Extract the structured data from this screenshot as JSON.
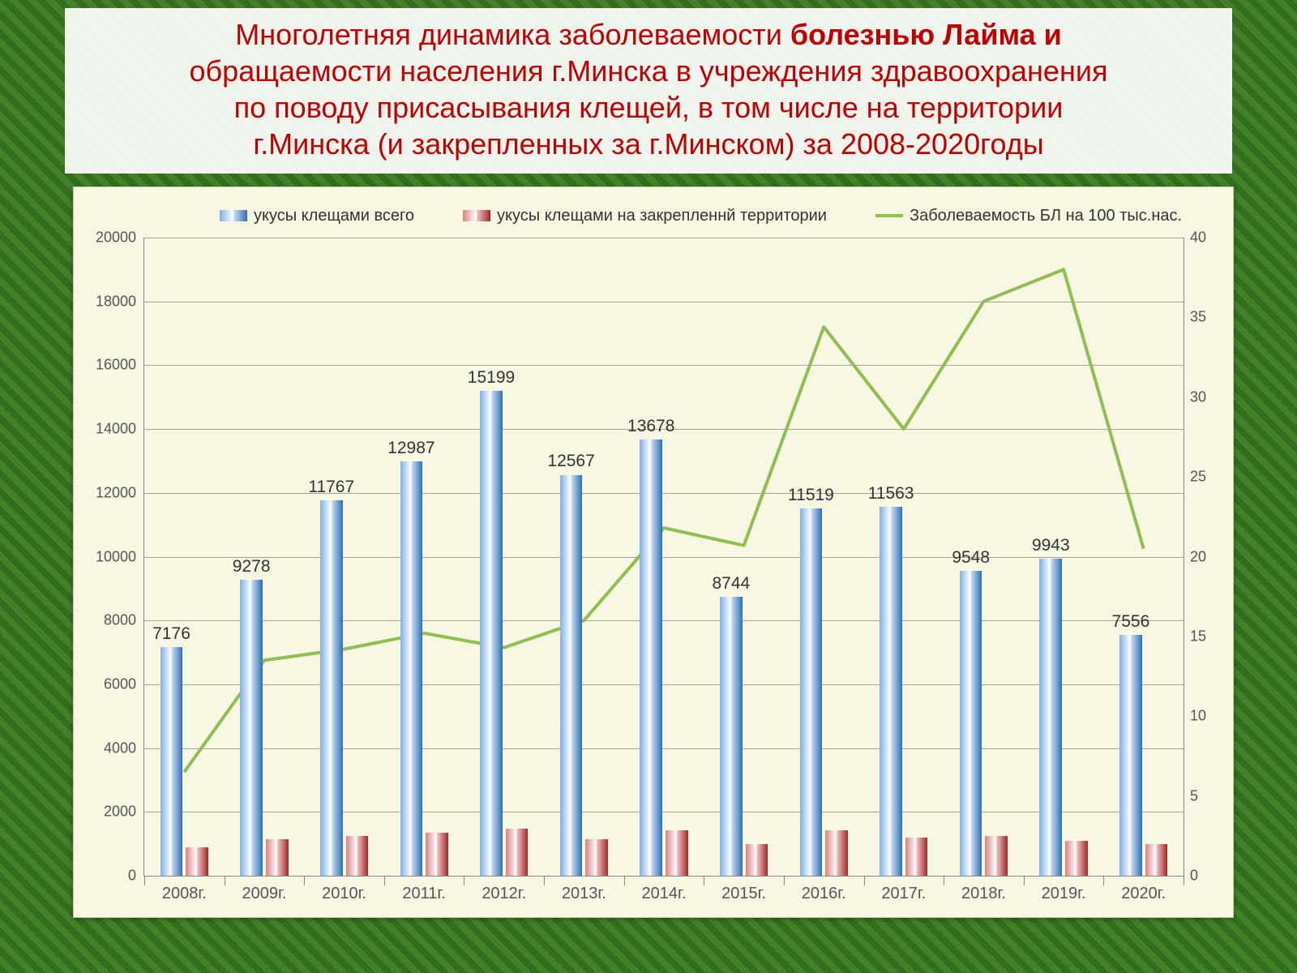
{
  "title": {
    "line1_prefix": "Многолетняя динамика заболеваемости  ",
    "line1_bold": "болезнью Лайма и",
    "line2": "обращаемости населения г.Минска в учреждения здравоохранения",
    "line3": "по поводу присасывания клещей, в том числе на территории",
    "line4": "г.Минска (и закрепленных за г.Минском)  за 2008-2020годы",
    "color": "#c00000",
    "fontsize": 36
  },
  "chart": {
    "type": "bar+line",
    "background_color": "#f7f7e3",
    "grid_color": "#a8a890",
    "categories": [
      "2008г.",
      "2009г.",
      "2010г.",
      "2011г.",
      "2012г.",
      "2013г.",
      "2014г.",
      "2015г.",
      "2016г.",
      "2017г.",
      "2018г.",
      "2019г.",
      "2020г."
    ],
    "series": [
      {
        "name": "укусы клещами всего",
        "kind": "bar",
        "axis": "left",
        "color": "#3f7ac0",
        "data": [
          7176,
          9278,
          11767,
          12987,
          15199,
          12567,
          13678,
          8744,
          11519,
          11563,
          9548,
          9943,
          7556
        ],
        "show_labels": true
      },
      {
        "name": "укусы клещами на закрепленнй территории",
        "kind": "bar",
        "axis": "left",
        "color": "#b03030",
        "data": [
          900,
          1150,
          1250,
          1350,
          1480,
          1150,
          1420,
          1000,
          1420,
          1200,
          1250,
          1100,
          980
        ],
        "show_labels": false
      },
      {
        "name": "Заболеваемость БЛ на 100 тыс.нас.",
        "kind": "line",
        "axis": "right",
        "color": "#8fbf4f",
        "line_width": 4,
        "data": [
          6.5,
          13.5,
          14.2,
          15.2,
          14.3,
          16.0,
          21.8,
          20.7,
          34.4,
          28.0,
          36.0,
          38.0,
          20.5
        ]
      }
    ],
    "y_left": {
      "min": 0,
      "max": 20000,
      "step": 2000,
      "fontsize": 18
    },
    "y_right": {
      "min": 0,
      "max": 40,
      "step": 5,
      "fontsize": 18
    },
    "x_fontsize": 20,
    "bar_width_ratio": 0.28,
    "bar_gap_ratio": 0.04,
    "label_fontsize": 21
  }
}
